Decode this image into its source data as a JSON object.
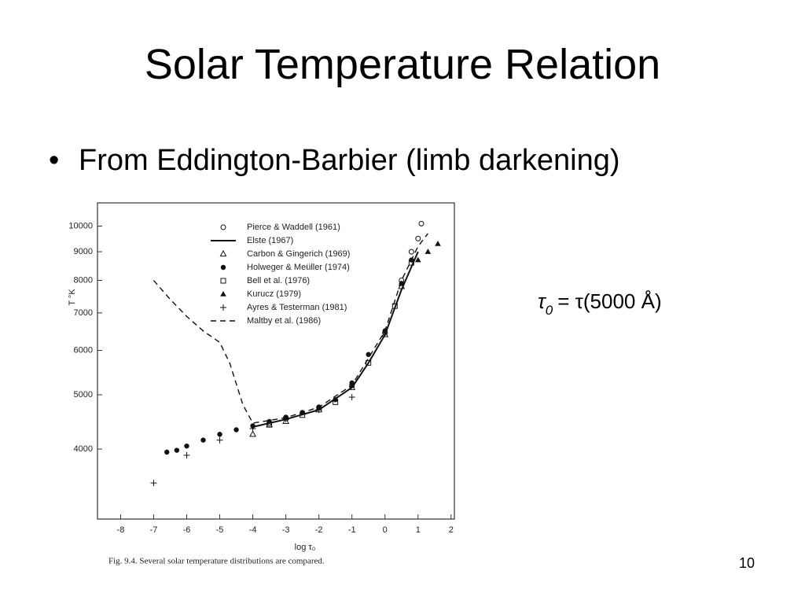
{
  "slide": {
    "title": "Solar Temperature Relation",
    "bullet": "From Eddington-Barbier (limb darkening)",
    "formula": {
      "symbol": "τ",
      "sub": "0",
      "rest": "= τ(5000 Å)"
    },
    "page_number": "10"
  },
  "chart_data": {
    "type": "scatter",
    "caption": "Fig. 9.4. Several solar temperature distributions are compared.",
    "x_label": "log τ₀",
    "y_label": "T °K",
    "log_y": true,
    "xlim": [
      -8.7,
      2.1
    ],
    "xticks": [
      -8,
      -7,
      -6,
      -5,
      -4,
      -3,
      -2,
      -1,
      0,
      1,
      2
    ],
    "ylim": [
      3000,
      11000
    ],
    "yticks": [
      4000,
      5000,
      6000,
      7000,
      8000,
      9000,
      10000
    ],
    "legend": "upper left",
    "series": [
      {
        "name": "Pierce & Waddell (1961)",
        "color": "#111",
        "marker": "circle-open",
        "x": [
          -3.5,
          -3,
          -2,
          -1,
          0,
          0.5,
          0.8,
          1.0,
          1.1
        ],
        "values": [
          4450,
          4550,
          4750,
          5200,
          6450,
          8000,
          9000,
          9500,
          10100
        ]
      },
      {
        "name": "Elste (1967)",
        "color": "#111",
        "marker": "line",
        "x": [
          -4,
          -3,
          -2,
          -1,
          -0.5,
          0,
          0.5,
          1
        ],
        "values": [
          4380,
          4520,
          4700,
          5150,
          5700,
          6400,
          7700,
          9000
        ]
      },
      {
        "name": "Carbon & Gingerich (1969)",
        "color": "#111",
        "marker": "triangle-open",
        "x": [
          -4,
          -3.5,
          -3,
          -2,
          -1,
          0,
          0.5
        ],
        "values": [
          4250,
          4420,
          4480,
          4700,
          5150,
          6400,
          7800
        ]
      },
      {
        "name": "Holweger & Meüller (1974)",
        "color": "#111",
        "marker": "circle-filled",
        "x": [
          -6.6,
          -6.3,
          -6,
          -5.5,
          -5,
          -4.5,
          -4,
          -3.5,
          -3,
          -2.5,
          -2,
          -1.5,
          -1,
          -0.5,
          0,
          0.5,
          0.8
        ],
        "values": [
          3950,
          3980,
          4050,
          4150,
          4250,
          4330,
          4400,
          4480,
          4560,
          4650,
          4750,
          4900,
          5250,
          5900,
          6500,
          7900,
          8700
        ]
      },
      {
        "name": "Bell et al. (1976)",
        "color": "#111",
        "marker": "square-open",
        "x": [
          -3.5,
          -2.5,
          -1.5,
          -0.5,
          0.3,
          0.8
        ],
        "values": [
          4420,
          4600,
          4850,
          5700,
          7200,
          8600
        ]
      },
      {
        "name": "Kurucz (1979)",
        "color": "#111",
        "marker": "triangle-filled",
        "x": [
          -3,
          -2,
          -1,
          0,
          0.5,
          1,
          1.3,
          1.6
        ],
        "values": [
          4540,
          4750,
          5200,
          6500,
          7900,
          8700,
          9000,
          9300
        ]
      },
      {
        "name": "Ayres & Testerman (1981)",
        "color": "#111",
        "marker": "plus",
        "x": [
          -7,
          -6,
          -5,
          -4,
          -3,
          -2,
          -1
        ],
        "values": [
          3480,
          3900,
          4150,
          4350,
          4520,
          4700,
          4950
        ]
      },
      {
        "name": "Maltby et al. (1986)",
        "color": "#111",
        "marker": "dashed",
        "x": [
          -7,
          -6.5,
          -6,
          -5.5,
          -5,
          -4.7,
          -4.3,
          -4,
          -3,
          -2,
          -1,
          0,
          0.5,
          1,
          1.3
        ],
        "values": [
          8000,
          7400,
          6900,
          6500,
          6200,
          5700,
          4800,
          4450,
          4550,
          4750,
          5200,
          6500,
          8000,
          9200,
          9700
        ]
      }
    ]
  }
}
